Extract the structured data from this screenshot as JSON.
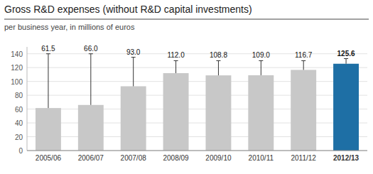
{
  "chart_data": {
    "type": "bar",
    "title": "Gross R&D expenses (without R&D capital investments)",
    "subtitle": "per business year, in millions of euros",
    "categories": [
      "2005/06",
      "2006/07",
      "2007/08",
      "2008/09",
      "2009/10",
      "2010/11",
      "2011/12",
      "2012/13"
    ],
    "values": [
      61.5,
      66.0,
      93.0,
      112.0,
      108.8,
      109.0,
      116.7,
      125.6
    ],
    "value_labels": [
      "61.5",
      "66.0",
      "93.0",
      "112.0",
      "108.8",
      "109.0",
      "116.7",
      "125.6"
    ],
    "error_bar_tops": [
      140,
      140,
      135,
      130,
      130,
      130,
      130,
      133
    ],
    "colors": [
      "#c8c8c8",
      "#c8c8c8",
      "#c8c8c8",
      "#c8c8c8",
      "#c8c8c8",
      "#c8c8c8",
      "#c8c8c8",
      "#1e6fa5"
    ],
    "ylim": [
      0,
      150
    ],
    "yticks": [
      0,
      20,
      40,
      60,
      80,
      100,
      120,
      140
    ],
    "grid": true,
    "data_labels": true
  }
}
